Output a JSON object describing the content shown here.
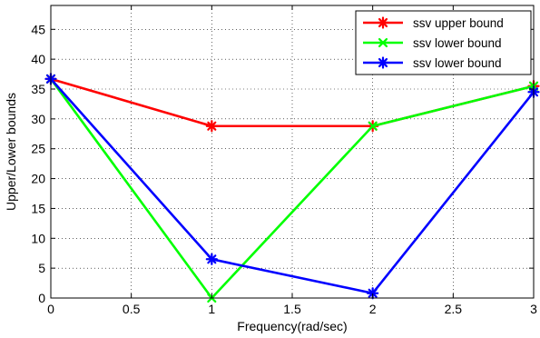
{
  "chart_data": {
    "type": "line",
    "title": "",
    "xlabel": "Frequency(rad/sec)",
    "ylabel": "Upper/Lower bounds",
    "xlim": [
      0,
      3
    ],
    "ylim": [
      0,
      49
    ],
    "xticks": [
      "0",
      "0.5",
      "1",
      "1.5",
      "2",
      "2.5",
      "3"
    ],
    "xtick_values": [
      0,
      0.5,
      1,
      1.5,
      2,
      2.5,
      3
    ],
    "yticks": [
      "0",
      "5",
      "10",
      "15",
      "20",
      "25",
      "30",
      "35",
      "40",
      "45"
    ],
    "ytick_values": [
      0,
      5,
      10,
      15,
      20,
      25,
      30,
      35,
      40,
      45
    ],
    "grid": true,
    "legend_position": "top-right",
    "x": [
      0,
      1,
      2,
      3
    ],
    "series": [
      {
        "name": "ssv upper bound",
        "color": "#ff0000",
        "marker": "asterisk",
        "values": [
          36.7,
          28.8,
          28.8,
          35.5
        ]
      },
      {
        "name": "ssv lower bound",
        "color": "#00ff00",
        "marker": "x",
        "values": [
          36.7,
          0.0,
          28.8,
          35.5
        ]
      },
      {
        "name": "ssv lower bound",
        "color": "#0000ff",
        "marker": "asterisk",
        "values": [
          36.7,
          6.5,
          0.8,
          34.5
        ]
      }
    ]
  }
}
